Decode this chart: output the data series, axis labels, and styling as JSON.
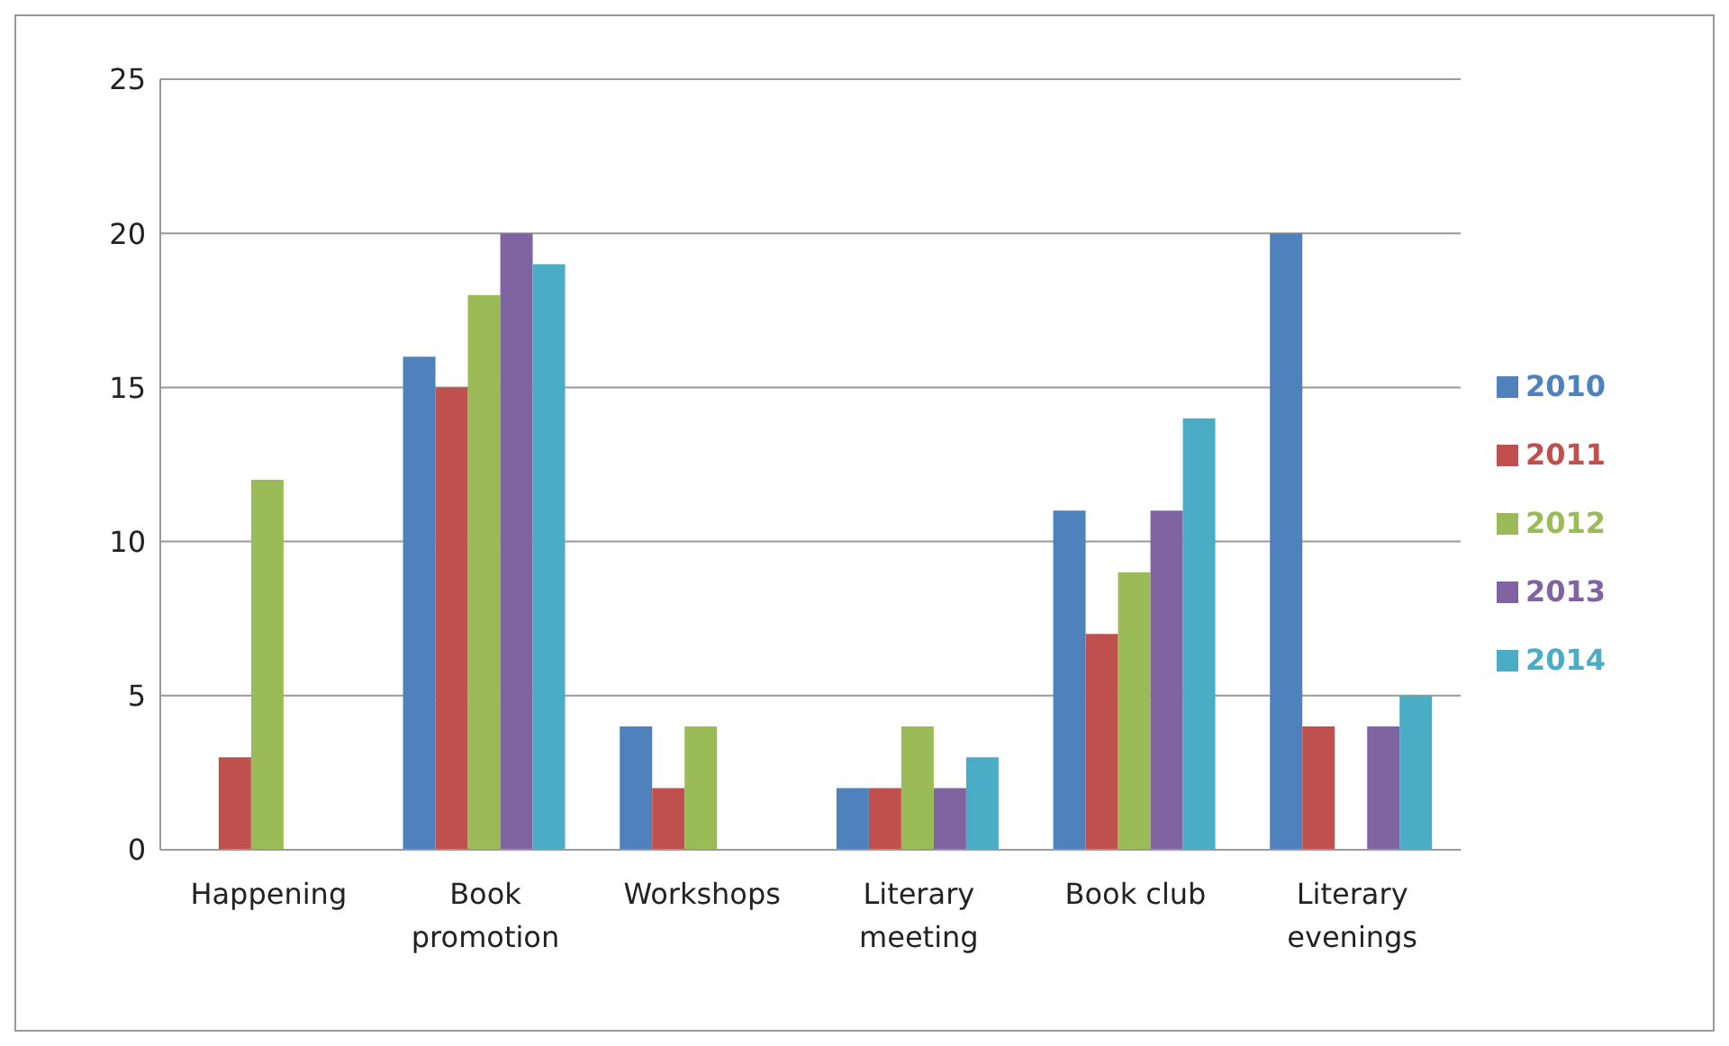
{
  "chart_data": {
    "type": "bar",
    "categories": [
      "Happening",
      "Book promotion",
      "Workshops",
      "Literary meeting",
      "Book club",
      "Literary evenings"
    ],
    "series": [
      {
        "name": "2010",
        "color": "#4f81bd",
        "values": [
          0,
          16,
          4,
          2,
          11,
          20
        ]
      },
      {
        "name": "2011",
        "color": "#c0504d",
        "values": [
          3,
          15,
          2,
          2,
          7,
          4
        ]
      },
      {
        "name": "2012",
        "color": "#9bbb59",
        "values": [
          12,
          18,
          4,
          4,
          9,
          0
        ]
      },
      {
        "name": "2013",
        "color": "#8064a2",
        "values": [
          0,
          20,
          0,
          2,
          11,
          4
        ]
      },
      {
        "name": "2014",
        "color": "#4bacc6",
        "values": [
          0,
          19,
          0,
          3,
          14,
          5
        ]
      }
    ],
    "ylim": [
      0,
      25
    ],
    "yticks": [
      0,
      5,
      10,
      15,
      20,
      25
    ],
    "grid": "y",
    "legend": "right"
  }
}
